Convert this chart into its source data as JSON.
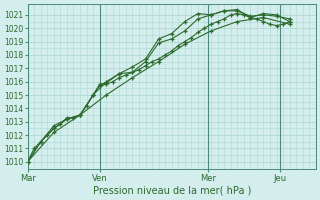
{
  "xlabel": "Pression niveau de la mer( hPa )",
  "bg_color": "#d4eeee",
  "grid_color": "#b0d8d0",
  "line_color": "#2d6a2d",
  "vline_color": "#4a8a7a",
  "ylim": [
    1009.5,
    1021.8
  ],
  "yticks": [
    1010,
    1011,
    1012,
    1013,
    1014,
    1015,
    1016,
    1017,
    1018,
    1019,
    1020,
    1021
  ],
  "xlim": [
    0,
    264
  ],
  "day_labels": [
    "Mar",
    "Ven",
    "Mer",
    "Jeu"
  ],
  "day_positions": [
    0,
    66,
    165,
    231
  ],
  "series": [
    {
      "x": [
        0,
        6,
        12,
        18,
        24,
        30,
        36,
        42,
        48,
        54,
        60,
        66,
        72,
        78,
        84,
        90,
        96,
        102,
        108,
        114,
        120,
        126,
        132,
        138,
        144,
        150,
        156,
        162,
        168,
        174,
        180,
        186,
        192,
        198,
        204,
        210,
        216,
        222,
        228,
        234,
        240
      ],
      "y": [
        1010.0,
        1011.0,
        1011.5,
        1012.0,
        1012.5,
        1012.8,
        1013.3,
        1013.3,
        1013.5,
        1014.2,
        1015.0,
        1015.7,
        1015.8,
        1016.0,
        1016.3,
        1016.5,
        1016.7,
        1016.9,
        1017.2,
        1017.5,
        1017.7,
        1018.0,
        1018.3,
        1018.7,
        1019.0,
        1019.3,
        1019.7,
        1020.0,
        1020.3,
        1020.5,
        1020.7,
        1021.0,
        1021.1,
        1021.0,
        1020.8,
        1020.7,
        1020.5,
        1020.3,
        1020.2,
        1020.3,
        1020.5
      ]
    },
    {
      "x": [
        0,
        12,
        24,
        36,
        48,
        60,
        66,
        72,
        84,
        96,
        108,
        120,
        132,
        144,
        156,
        168,
        180,
        192,
        204,
        216,
        228,
        240
      ],
      "y": [
        1010.0,
        1011.5,
        1012.5,
        1013.2,
        1013.5,
        1015.0,
        1015.8,
        1015.9,
        1016.6,
        1016.7,
        1017.5,
        1018.9,
        1019.2,
        1019.8,
        1020.7,
        1021.0,
        1021.3,
        1021.3,
        1020.9,
        1021.0,
        1020.9,
        1020.7
      ]
    },
    {
      "x": [
        0,
        12,
        24,
        36,
        48,
        60,
        72,
        84,
        96,
        108,
        120,
        132,
        144,
        156,
        168,
        180,
        192,
        204,
        216,
        228,
        240
      ],
      "y": [
        1010.0,
        1011.5,
        1012.7,
        1013.2,
        1013.5,
        1015.0,
        1016.0,
        1016.6,
        1017.1,
        1017.7,
        1019.2,
        1019.6,
        1020.5,
        1021.1,
        1021.0,
        1021.3,
        1021.4,
        1020.8,
        1021.1,
        1021.0,
        1020.5
      ]
    },
    {
      "x": [
        0,
        24,
        48,
        72,
        96,
        120,
        144,
        168,
        192,
        216,
        240
      ],
      "y": [
        1010.0,
        1012.2,
        1013.5,
        1015.0,
        1016.3,
        1017.5,
        1018.8,
        1019.8,
        1020.5,
        1020.8,
        1020.3
      ]
    }
  ]
}
